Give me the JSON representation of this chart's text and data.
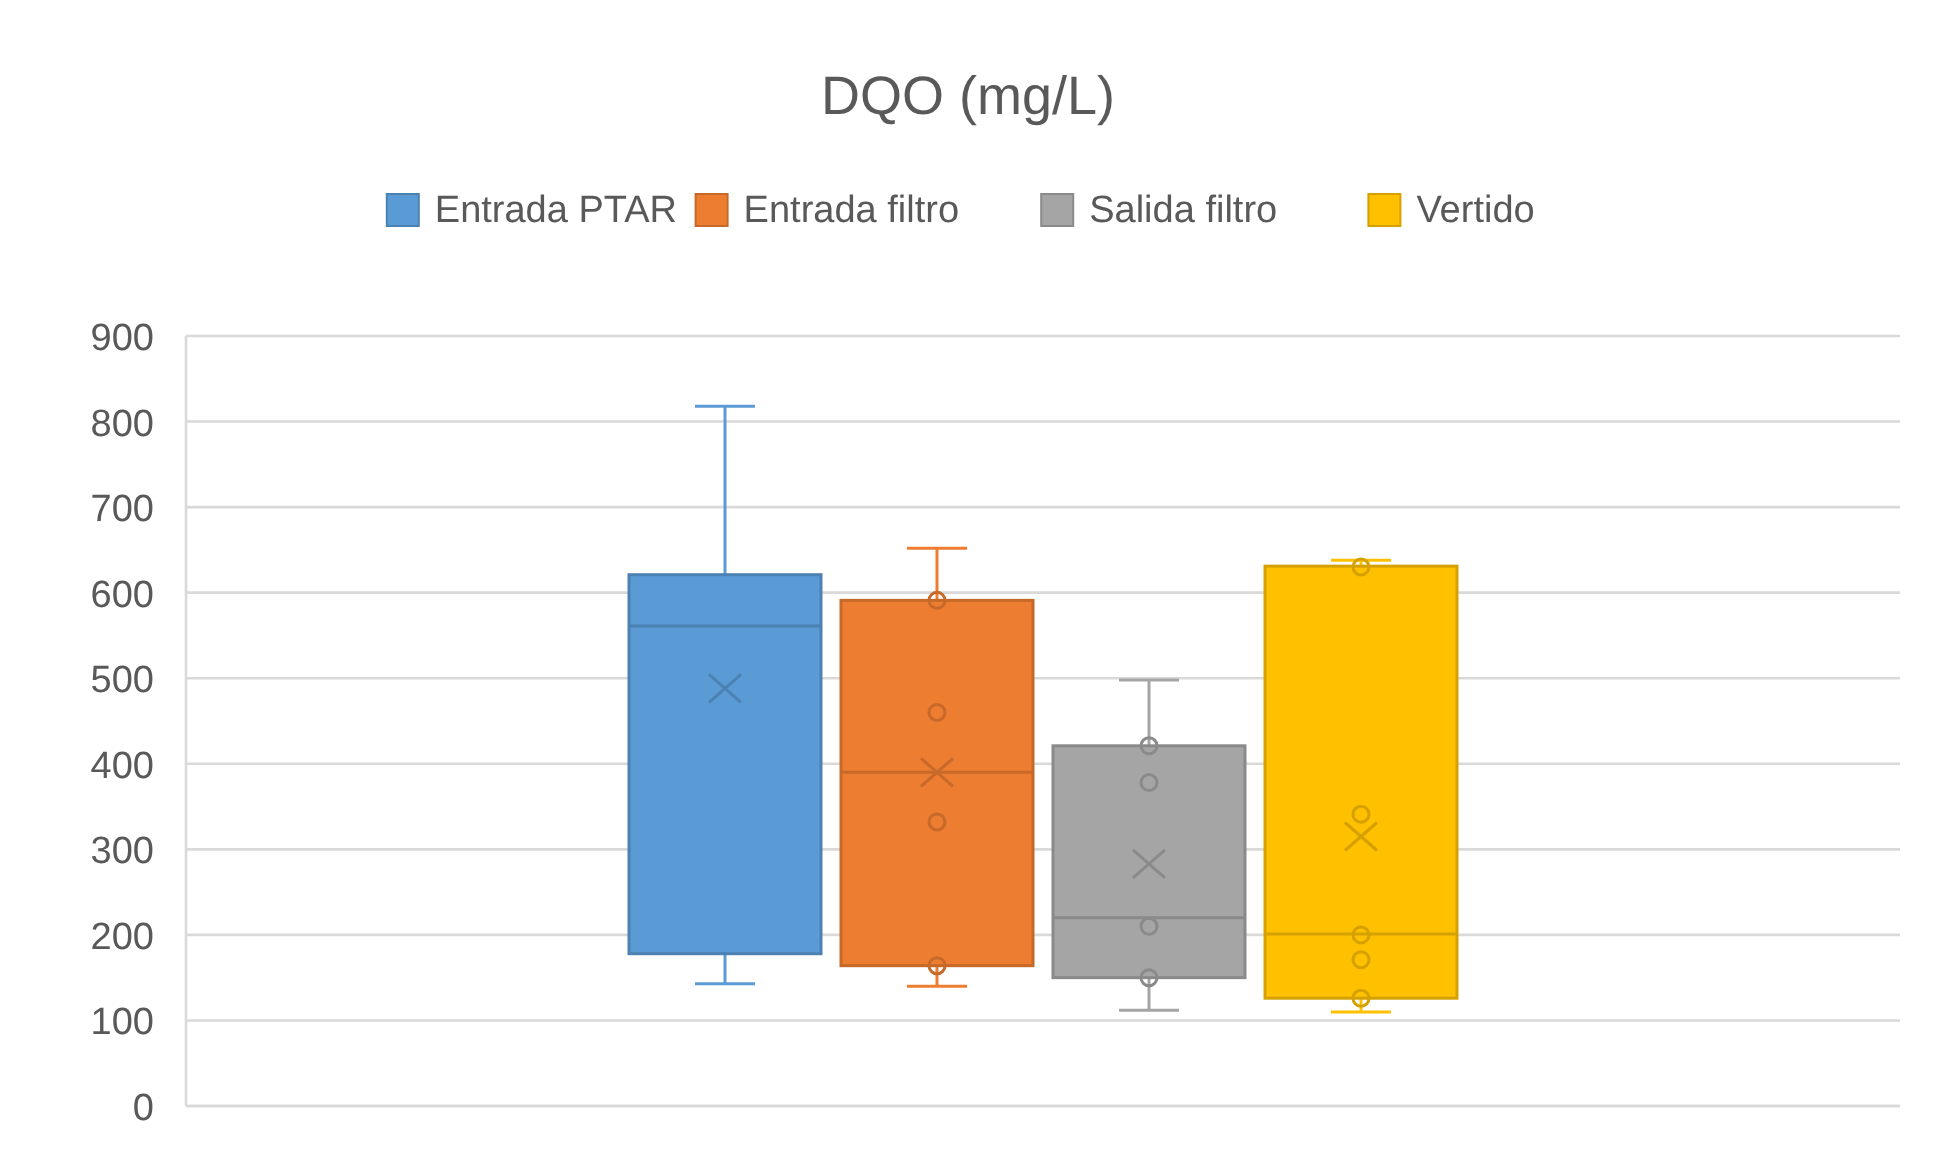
{
  "chart_data": {
    "type": "box",
    "title": "DQO (mg/L)",
    "categories": [
      null
    ],
    "ylim": [
      0,
      900
    ],
    "yticks": [
      0,
      100,
      200,
      300,
      400,
      500,
      600,
      700,
      800,
      900
    ],
    "grid": "y",
    "legend": "top",
    "series": [
      {
        "name": "Entrada PTAR",
        "color": "#5b9bd5",
        "boxes": [
          {
            "low": 143,
            "q1": 178,
            "median": 561,
            "q3": 621,
            "high": 818,
            "mean": 488
          }
        ]
      },
      {
        "name": "Entrada filtro",
        "color": "#ed7d31",
        "boxes": [
          {
            "low": 140,
            "q1": 164,
            "median": 390,
            "q3": 591,
            "high": 652,
            "mean": 390,
            "outliers": [
              591,
              460,
              332,
              164
            ]
          }
        ]
      },
      {
        "name": "Salida filtro",
        "color": "#a5a5a5",
        "boxes": [
          {
            "low": 112,
            "q1": 150,
            "median": 220,
            "q3": 421,
            "high": 498,
            "mean": 283,
            "outliers": [
              421,
              378,
              210,
              150
            ]
          }
        ]
      },
      {
        "name": "Vertido",
        "color": "#ffc000",
        "boxes": [
          {
            "low": 110,
            "q1": 126,
            "median": 201,
            "q3": 631,
            "high": 638,
            "mean": 315,
            "outliers": [
              630,
              341,
              200,
              171,
              126
            ]
          }
        ]
      }
    ]
  }
}
